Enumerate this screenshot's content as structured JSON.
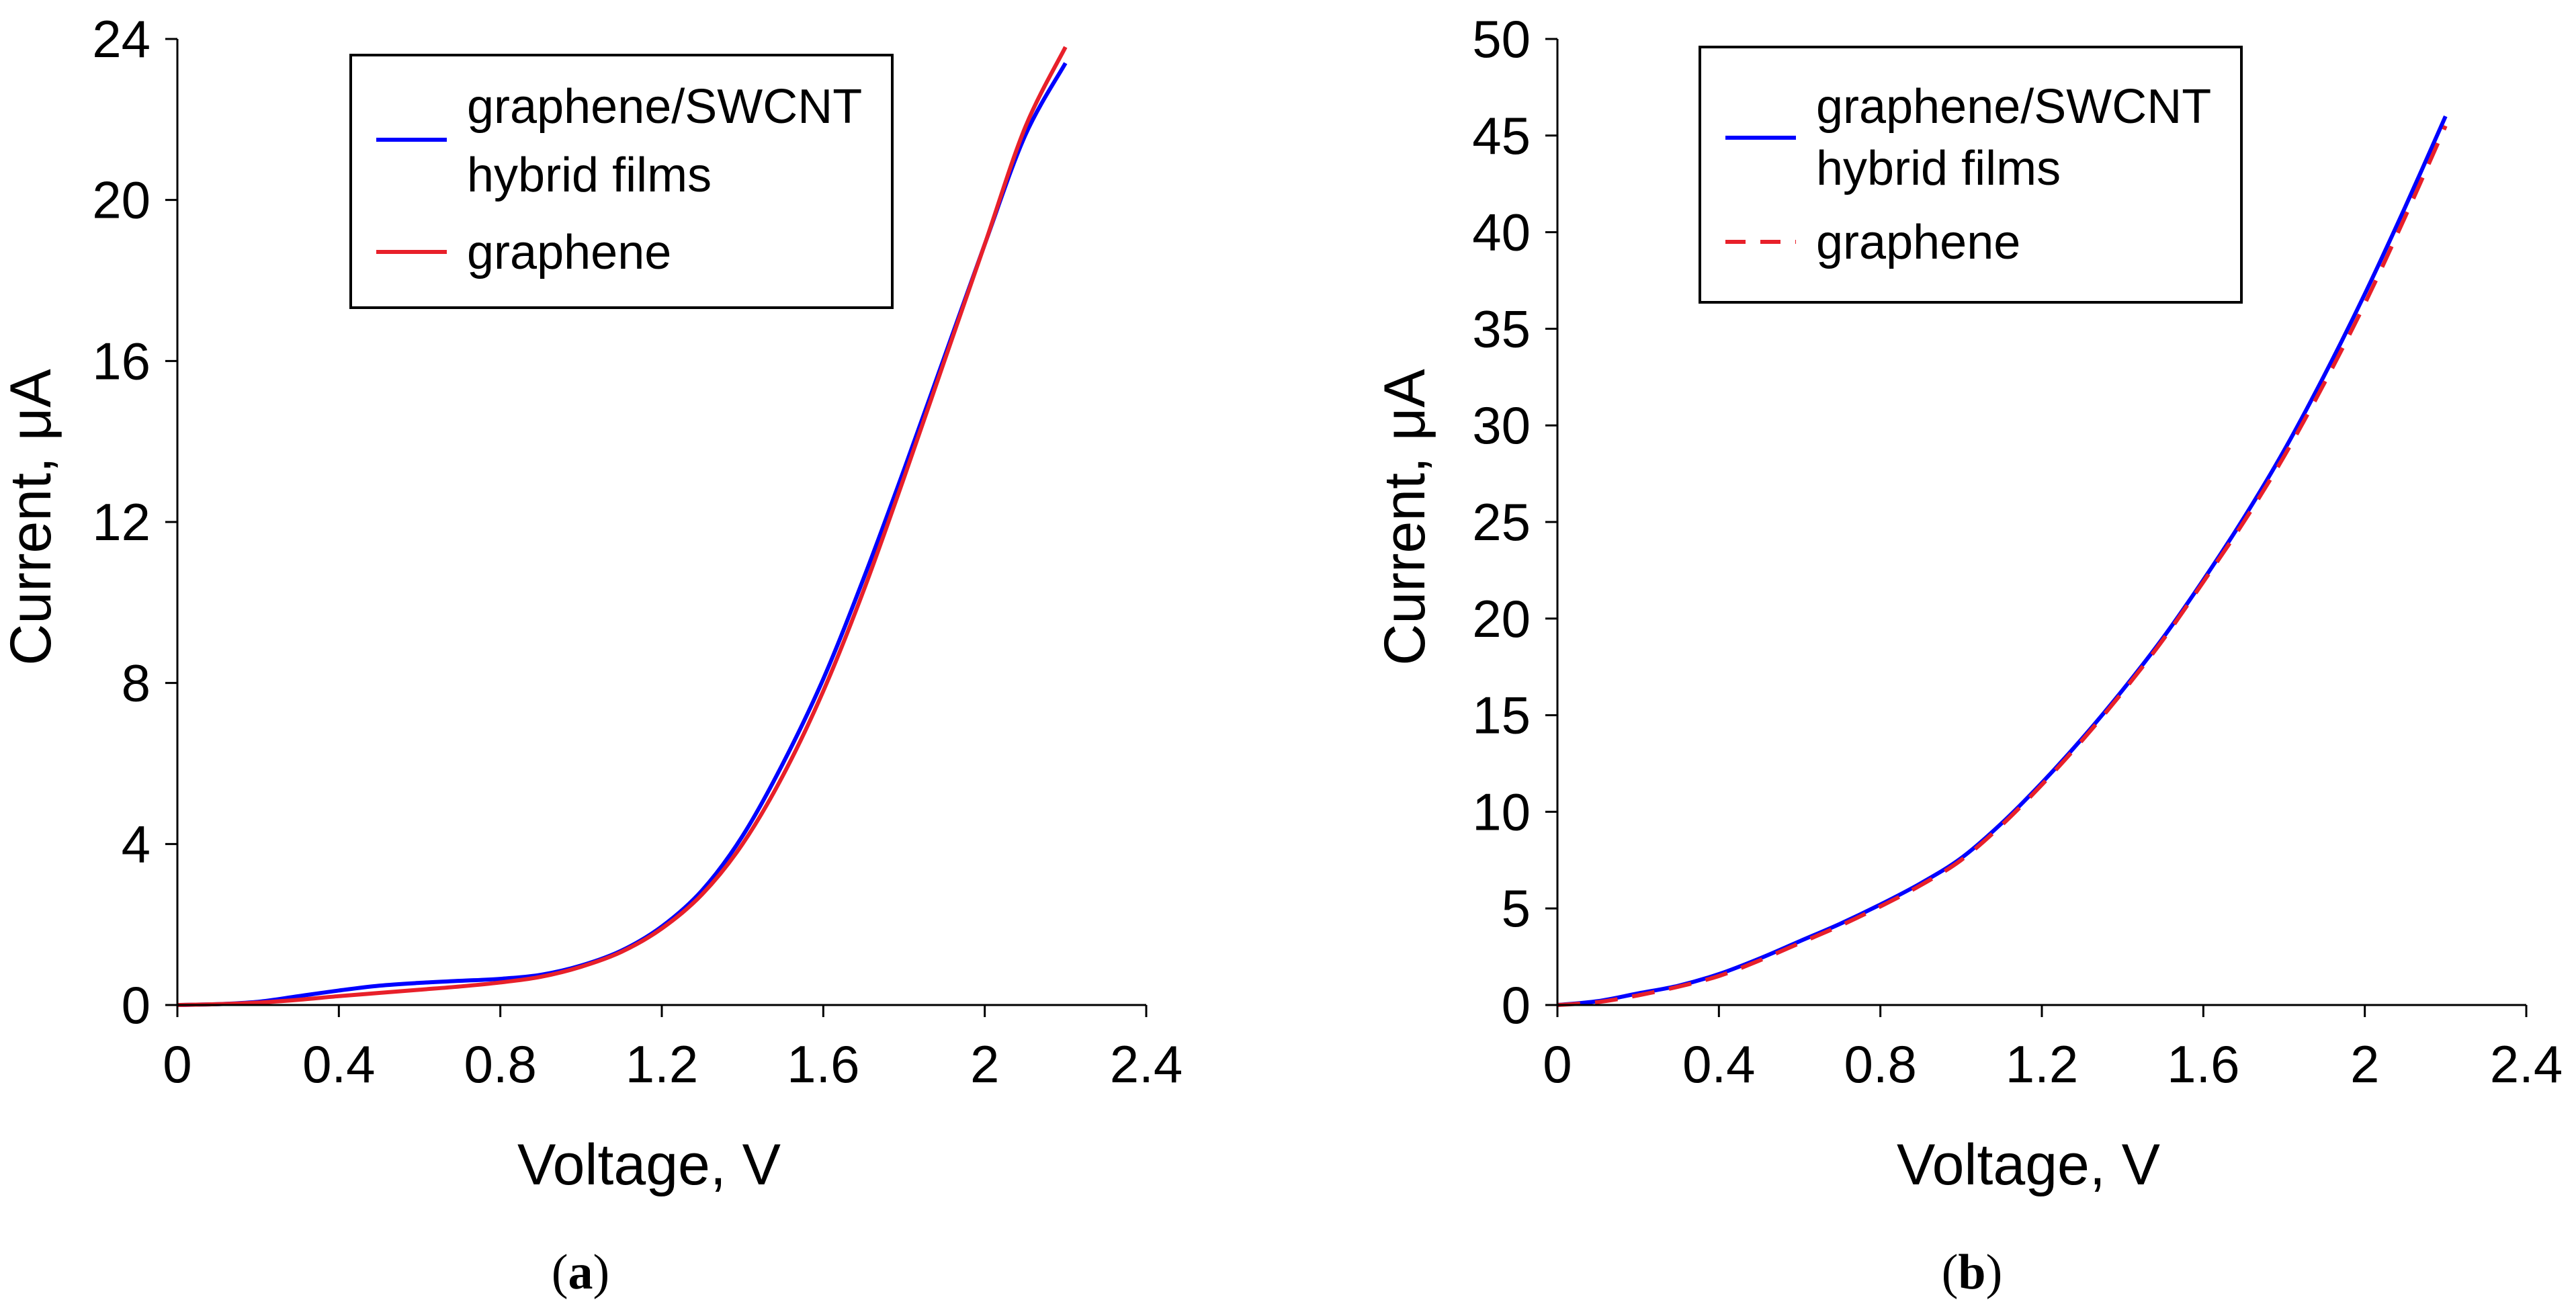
{
  "chart_data": [
    {
      "type": "line",
      "panel_label": "(a)",
      "panel_letter": "a",
      "xlabel": "Voltage, V",
      "ylabel": "Current, μA",
      "xlim": [
        0,
        2.4
      ],
      "ylim": [
        0,
        24
      ],
      "xticks": [
        "0",
        "0.4",
        "0.8",
        "1.2",
        "1.6",
        "2",
        "2.4"
      ],
      "yticks": [
        "0",
        "4",
        "8",
        "12",
        "16",
        "20",
        "24"
      ],
      "grid": false,
      "legend": {
        "placement": "top-left-inside",
        "entries": [
          "graphene/SWCNT hybrid films",
          "graphene"
        ]
      },
      "series": [
        {
          "name": "graphene/SWCNT hybrid films",
          "legend_lines": [
            "graphene/SWCNT",
            "hybrid films"
          ],
          "color": "#0000ff",
          "dash": "solid",
          "x": [
            0,
            0.1,
            0.2,
            0.3,
            0.4,
            0.5,
            0.6,
            0.7,
            0.8,
            0.9,
            1.0,
            1.1,
            1.2,
            1.3,
            1.4,
            1.5,
            1.6,
            1.7,
            1.8,
            1.9,
            2.0,
            2.1,
            2.2
          ],
          "y": [
            0,
            0.02,
            0.08,
            0.22,
            0.36,
            0.48,
            0.55,
            0.6,
            0.65,
            0.75,
            0.98,
            1.35,
            1.95,
            2.85,
            4.2,
            6.0,
            8.1,
            10.6,
            13.3,
            16.1,
            18.9,
            21.6,
            23.4
          ]
        },
        {
          "name": "graphene",
          "legend_lines": [
            "graphene"
          ],
          "color": "#e8202a",
          "dash": "solid",
          "x": [
            0,
            0.1,
            0.2,
            0.3,
            0.4,
            0.5,
            0.6,
            0.7,
            0.8,
            0.9,
            1.0,
            1.1,
            1.2,
            1.3,
            1.4,
            1.5,
            1.6,
            1.7,
            1.8,
            1.9,
            2.0,
            2.1,
            2.2
          ],
          "y": [
            0,
            0.02,
            0.06,
            0.13,
            0.22,
            0.3,
            0.38,
            0.46,
            0.56,
            0.7,
            0.95,
            1.32,
            1.9,
            2.75,
            4.0,
            5.7,
            7.8,
            10.3,
            13.1,
            16.0,
            18.9,
            21.8,
            23.8
          ]
        }
      ]
    },
    {
      "type": "line",
      "panel_label": "(b)",
      "panel_letter": "b",
      "xlabel": "Voltage, V",
      "ylabel": "Current, μA",
      "xlim": [
        0,
        2.4
      ],
      "ylim": [
        0,
        50
      ],
      "xticks": [
        "0",
        "0.4",
        "0.8",
        "1.2",
        "1.6",
        "2",
        "2.4"
      ],
      "yticks": [
        "0",
        "5",
        "10",
        "15",
        "20",
        "25",
        "30",
        "35",
        "40",
        "45",
        "50"
      ],
      "grid": false,
      "legend": {
        "placement": "top-left-inside",
        "entries": [
          "graphene/SWCNT hybrid films",
          "graphene"
        ]
      },
      "series": [
        {
          "name": "graphene/SWCNT hybrid films",
          "legend_lines": [
            "graphene/SWCNT",
            "hybrid films"
          ],
          "color": "#0000ff",
          "dash": "solid",
          "x": [
            0,
            0.1,
            0.2,
            0.3,
            0.4,
            0.5,
            0.6,
            0.7,
            0.8,
            0.9,
            1.0,
            1.1,
            1.2,
            1.3,
            1.4,
            1.5,
            1.6,
            1.7,
            1.8,
            1.9,
            2.0,
            2.1,
            2.2
          ],
          "y": [
            0,
            0.2,
            0.6,
            1.0,
            1.6,
            2.4,
            3.3,
            4.2,
            5.2,
            6.3,
            7.6,
            9.4,
            11.5,
            13.8,
            16.3,
            19.0,
            22.0,
            25.2,
            28.7,
            32.6,
            36.8,
            41.3,
            46.0
          ]
        },
        {
          "name": "graphene",
          "legend_lines": [
            "graphene"
          ],
          "color": "#e8202a",
          "dash": "dashed",
          "x": [
            0,
            0.1,
            0.2,
            0.3,
            0.4,
            0.5,
            0.6,
            0.7,
            0.8,
            0.9,
            1.0,
            1.1,
            1.2,
            1.3,
            1.4,
            1.5,
            1.6,
            1.7,
            1.8,
            1.9,
            2.0,
            2.1,
            2.2
          ],
          "y": [
            0,
            0.15,
            0.5,
            0.95,
            1.5,
            2.3,
            3.2,
            4.1,
            5.1,
            6.2,
            7.5,
            9.3,
            11.4,
            13.7,
            16.2,
            18.9,
            21.9,
            25.0,
            28.4,
            32.2,
            36.3,
            40.8,
            45.5
          ]
        }
      ]
    }
  ]
}
